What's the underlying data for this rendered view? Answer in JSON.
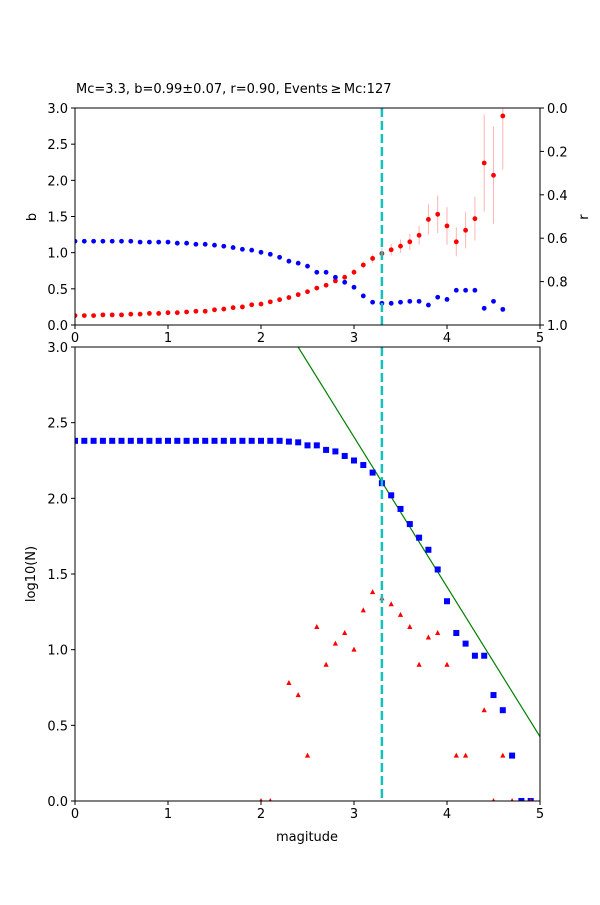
{
  "chart_data": [
    {
      "type": "scatter",
      "title": "Mc=3.3, b=0.99±0.07, r=0.90, Events ≥ Mc:127",
      "xlabel": "",
      "ylabel": "b",
      "ylabel_right": "r",
      "xlim": [
        0,
        5
      ],
      "ylim": [
        0,
        3
      ],
      "ylim_right": [
        1,
        0
      ],
      "right_axis_inverted": true,
      "xticks": [
        "0",
        "1",
        "2",
        "3",
        "4",
        "5"
      ],
      "yticks": [
        "0.0",
        "0.5",
        "1.0",
        "1.5",
        "2.0",
        "2.5",
        "3.0"
      ],
      "yticks_right": [
        "0.0",
        "0.2",
        "0.4",
        "0.6",
        "0.8",
        "1.0"
      ],
      "mc_line": 3.3,
      "x": [
        0,
        0.1,
        0.2,
        0.3,
        0.4,
        0.5,
        0.6,
        0.7,
        0.8,
        0.9,
        1.0,
        1.1,
        1.2,
        1.3,
        1.4,
        1.5,
        1.6,
        1.7,
        1.8,
        1.9,
        2.0,
        2.1,
        2.2,
        2.3,
        2.4,
        2.5,
        2.6,
        2.7,
        2.8,
        2.9,
        3.0,
        3.1,
        3.2,
        3.3,
        3.4,
        3.5,
        3.6,
        3.7,
        3.8,
        3.9,
        4.0,
        4.1,
        4.2,
        4.3,
        4.4,
        4.5,
        4.6
      ],
      "series": [
        {
          "axis": "left",
          "color": "#ff0000",
          "marker": "circle",
          "values": [
            0.13,
            0.13,
            0.13,
            0.14,
            0.14,
            0.14,
            0.15,
            0.15,
            0.16,
            0.16,
            0.17,
            0.17,
            0.18,
            0.19,
            0.19,
            0.21,
            0.22,
            0.24,
            0.25,
            0.28,
            0.29,
            0.32,
            0.35,
            0.38,
            0.42,
            0.46,
            0.51,
            0.55,
            0.61,
            0.66,
            0.73,
            0.83,
            0.92,
            0.99,
            1.04,
            1.09,
            1.15,
            1.24,
            1.46,
            1.53,
            1.37,
            1.15,
            1.31,
            1.47,
            2.24,
            2.07,
            2.89
          ],
          "errors": [
            0.01,
            0.01,
            0.01,
            0.01,
            0.01,
            0.01,
            0.01,
            0.01,
            0.01,
            0.01,
            0.01,
            0.01,
            0.01,
            0.01,
            0.01,
            0.01,
            0.01,
            0.01,
            0.01,
            0.01,
            0.01,
            0.01,
            0.01,
            0.02,
            0.02,
            0.02,
            0.02,
            0.03,
            0.03,
            0.03,
            0.04,
            0.05,
            0.06,
            0.07,
            0.08,
            0.09,
            0.11,
            0.13,
            0.21,
            0.26,
            0.26,
            0.2,
            0.25,
            0.3,
            0.67,
            0.67,
            0.74
          ],
          "error_color": "#ffb3b3"
        },
        {
          "axis": "right",
          "color": "#0000ff",
          "marker": "circle",
          "values": [
            0.614,
            0.614,
            0.614,
            0.614,
            0.614,
            0.614,
            0.614,
            0.618,
            0.618,
            0.618,
            0.618,
            0.623,
            0.623,
            0.628,
            0.628,
            0.632,
            0.637,
            0.643,
            0.651,
            0.655,
            0.665,
            0.674,
            0.688,
            0.706,
            0.715,
            0.729,
            0.757,
            0.757,
            0.78,
            0.803,
            0.826,
            0.866,
            0.895,
            0.9,
            0.9,
            0.895,
            0.891,
            0.891,
            0.908,
            0.872,
            0.882,
            0.84,
            0.84,
            0.84,
            0.923,
            0.891,
            0.928
          ]
        }
      ]
    },
    {
      "type": "scatter",
      "xlabel": "magitude",
      "ylabel": "log10(N)",
      "xlim": [
        0,
        5
      ],
      "ylim": [
        0,
        3
      ],
      "xticks": [
        "0",
        "1",
        "2",
        "3",
        "4",
        "5"
      ],
      "yticks": [
        "0.0",
        "0.5",
        "1.0",
        "1.5",
        "2.0",
        "2.5",
        "3.0"
      ],
      "mc_line": 3.3,
      "cumulative": {
        "color": "#0000ff",
        "marker": "square",
        "x": [
          0,
          0.1,
          0.2,
          0.3,
          0.4,
          0.5,
          0.6,
          0.7,
          0.8,
          0.9,
          1.0,
          1.1,
          1.2,
          1.3,
          1.4,
          1.5,
          1.6,
          1.7,
          1.8,
          1.9,
          2.0,
          2.1,
          2.2,
          2.3,
          2.4,
          2.5,
          2.6,
          2.7,
          2.8,
          2.9,
          3.0,
          3.1,
          3.2,
          3.3,
          3.4,
          3.5,
          3.6,
          3.7,
          3.8,
          3.9,
          4.0,
          4.1,
          4.2,
          4.3,
          4.4,
          4.5,
          4.6,
          4.7,
          4.8,
          4.9
        ],
        "values": [
          2.38,
          2.38,
          2.38,
          2.38,
          2.38,
          2.38,
          2.38,
          2.38,
          2.38,
          2.38,
          2.38,
          2.38,
          2.38,
          2.38,
          2.38,
          2.38,
          2.38,
          2.38,
          2.38,
          2.38,
          2.38,
          2.38,
          2.38,
          2.375,
          2.37,
          2.35,
          2.35,
          2.32,
          2.31,
          2.28,
          2.25,
          2.22,
          2.17,
          2.1,
          2.02,
          1.93,
          1.83,
          1.74,
          1.66,
          1.53,
          1.32,
          1.11,
          1.04,
          0.96,
          0.96,
          0.7,
          0.6,
          0.3,
          0.0,
          0.0
        ]
      },
      "non_cumulative": {
        "color": "#ff0000",
        "marker": "triangle",
        "x": [
          2.0,
          2.1,
          2.3,
          2.4,
          2.5,
          2.6,
          2.7,
          2.8,
          2.9,
          3.0,
          3.1,
          3.2,
          3.3,
          3.4,
          3.5,
          3.6,
          3.7,
          3.8,
          3.9,
          4.0,
          4.1,
          4.2,
          4.4,
          4.5,
          4.6,
          4.7,
          4.9
        ],
        "values": [
          0,
          0,
          0.78,
          0.7,
          0.3,
          1.15,
          0.9,
          1.04,
          1.11,
          1.0,
          1.26,
          1.38,
          1.34,
          1.3,
          1.23,
          1.15,
          0.9,
          1.08,
          1.11,
          0.9,
          0.3,
          0.3,
          0.6,
          0,
          0.3,
          0,
          0
        ]
      },
      "fit_line": {
        "color": "#008000",
        "a": 5.375,
        "b": 0.99
      }
    }
  ],
  "colors": {
    "mc_line": "#17bfbf"
  }
}
